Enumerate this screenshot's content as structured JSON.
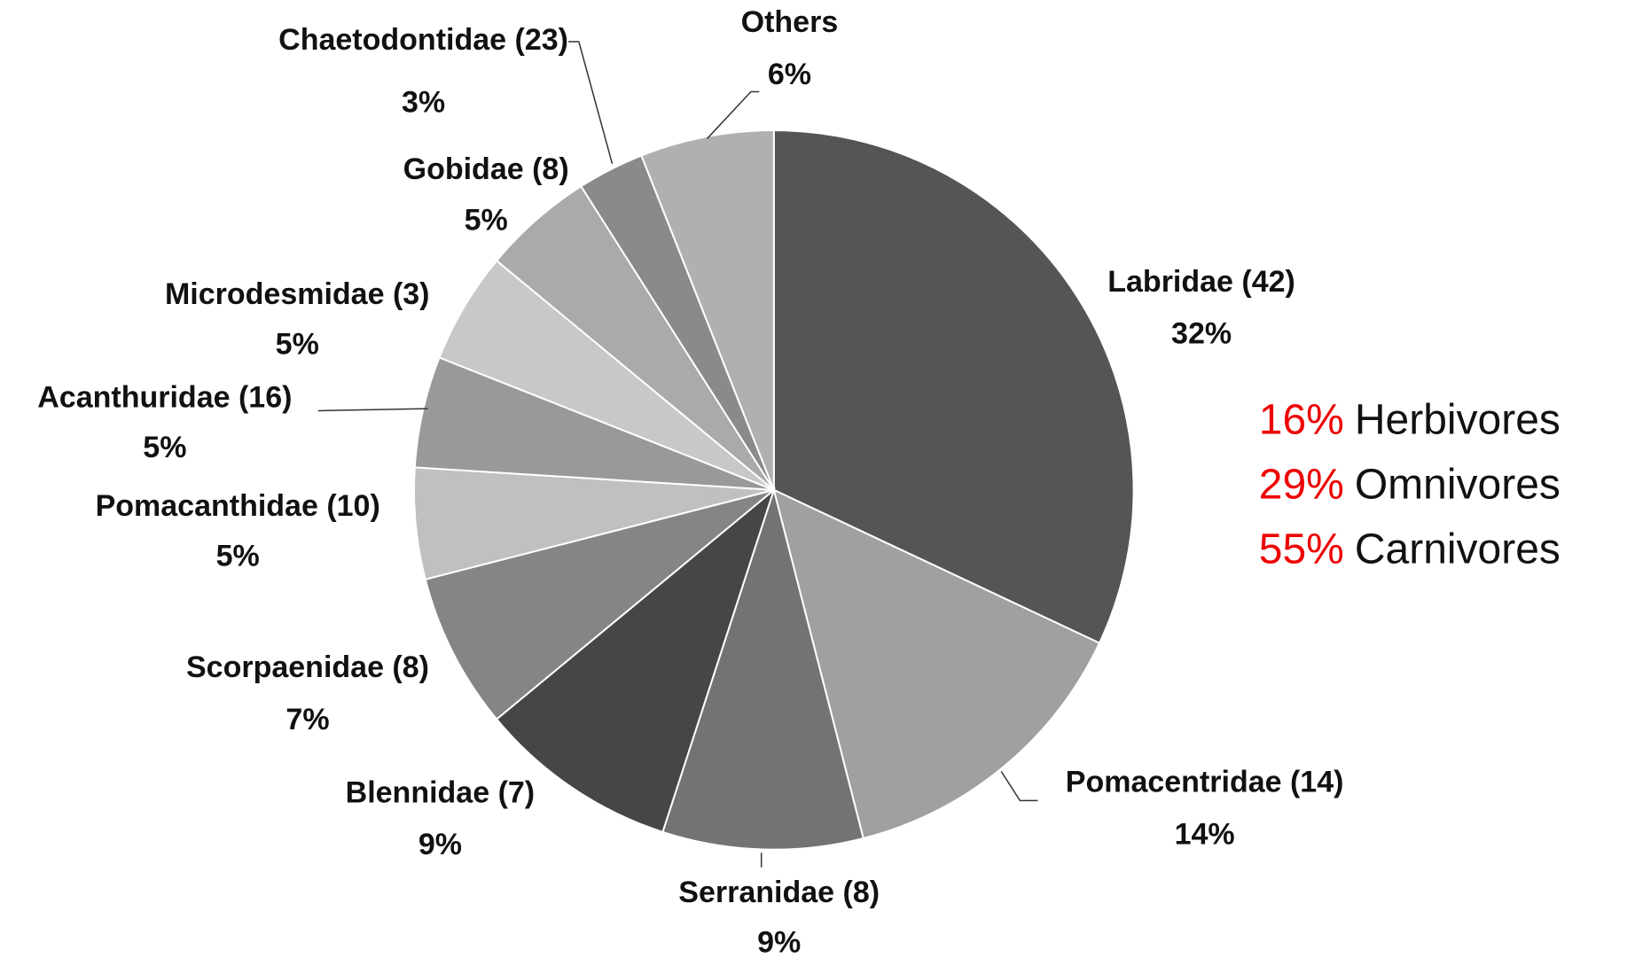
{
  "chart_data": {
    "type": "pie",
    "categories": [
      "Labridae (42)",
      "Pomacentridae (14)",
      "Serranidae (8)",
      "Blennidae (7)",
      "Scorpaenidae (8)",
      "Pomacanthidae (10)",
      "Acanthuridae (16)",
      "Microdesmidae (3)",
      "Gobidae (8)",
      "Chaetodontidae (23)",
      "Others"
    ],
    "values": [
      32,
      14,
      9,
      9,
      7,
      5,
      5,
      5,
      5,
      3,
      6
    ],
    "value_labels": [
      "32%",
      "14%",
      "9%",
      "9%",
      "7%",
      "5%",
      "5%",
      "5%",
      "5%",
      "3%",
      "6%"
    ],
    "colors": [
      "#555555",
      "#a0a0a0",
      "#737373",
      "#464646",
      "#858585",
      "#c0c0c0",
      "#999999",
      "#c8c8c8",
      "#aaaaaa",
      "#8a8a8a",
      "#b0b0b0"
    ],
    "annotations": [
      {
        "percent": "16%",
        "label": "Herbivores"
      },
      {
        "percent": "29%",
        "label": "Omnivores"
      },
      {
        "percent": "55%",
        "label": "Carnivores"
      }
    ]
  }
}
